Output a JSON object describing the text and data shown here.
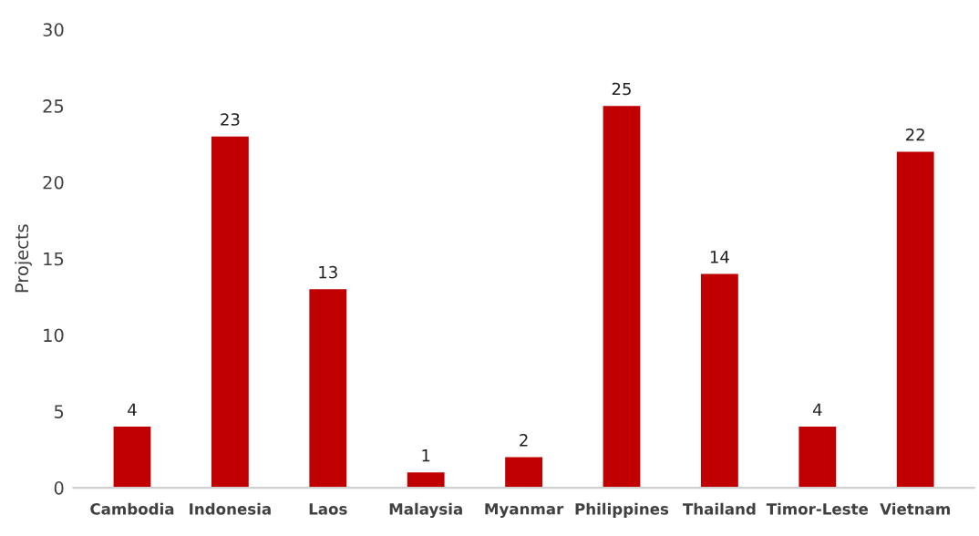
{
  "chart_data": {
    "type": "bar",
    "ylabel": "Projects",
    "categories": [
      "Cambodia",
      "Indonesia",
      "Laos",
      "Malaysia",
      "Myanmar",
      "Philippines",
      "Thailand",
      "Timor-Leste",
      "Vietnam"
    ],
    "values": [
      4,
      23,
      13,
      1,
      2,
      25,
      14,
      4,
      22
    ],
    "color": "#c00000",
    "ylim": [
      0,
      30
    ],
    "yticks": [
      0,
      5,
      10,
      15,
      20,
      25,
      30
    ],
    "data_labels": true,
    "grid": false,
    "legend": false
  }
}
